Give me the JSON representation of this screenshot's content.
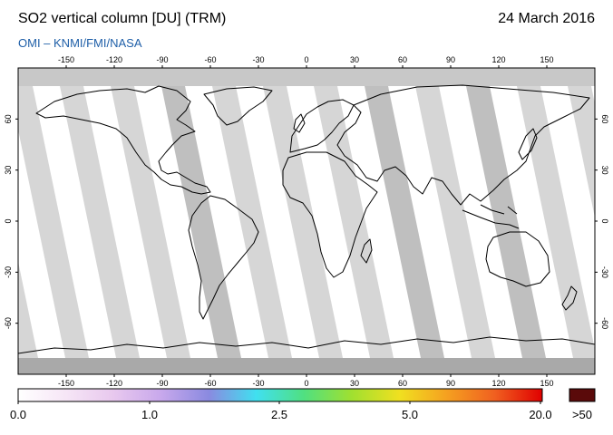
{
  "header": {
    "title": "SO2 vertical column [DU] (TRM)",
    "subtitle": "OMI  –  KNMI/FMI/NASA",
    "date": "24 March 2016"
  },
  "map": {
    "lon_ticks": [
      -150,
      -120,
      -90,
      -60,
      -30,
      0,
      30,
      60,
      90,
      120,
      150
    ],
    "lat_ticks": [
      60,
      30,
      0,
      -30,
      -60
    ],
    "lon_range": [
      -180,
      180
    ],
    "lat_range": [
      -90,
      90
    ],
    "colors": {
      "no_data": "#c8c8c8",
      "orbit_band": "#d2d2d2",
      "orbit_band_dark": "#a9a9a9",
      "background": "#ffffff",
      "coastline": "#000000"
    }
  },
  "colorbar": {
    "labels": [
      "0.0",
      "1.0",
      "2.5",
      "5.0",
      "20.0"
    ],
    "overflow_label": ">50",
    "overflow_color": "#5a0a0a",
    "stops": [
      "#ffffff",
      "#f6e6f6",
      "#e8c8ee",
      "#c8a8ec",
      "#8a8ae0",
      "#40e0f0",
      "#50e080",
      "#a0e030",
      "#f0e020",
      "#f5a020",
      "#f06020",
      "#e00000"
    ]
  }
}
